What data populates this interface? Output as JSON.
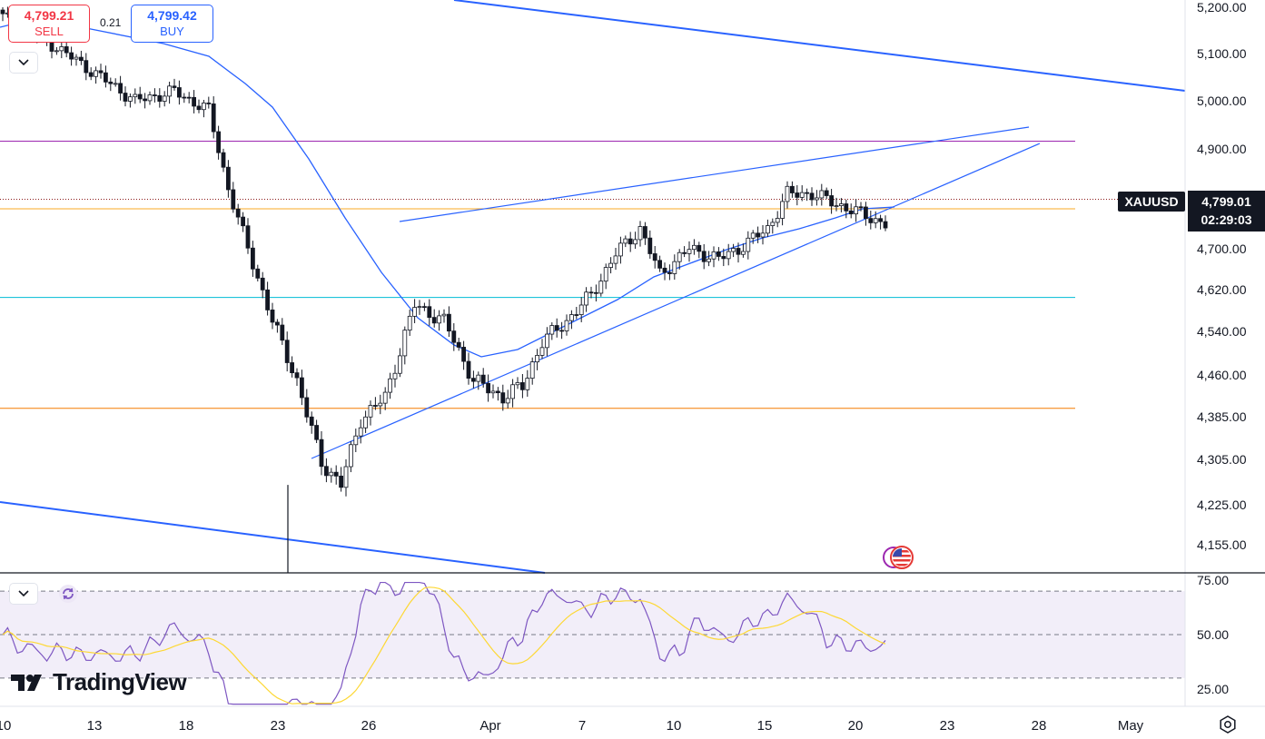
{
  "symbol": "XAUUSD",
  "trade": {
    "sell_price": "4,799.21",
    "sell_label": "SELL",
    "buy_price": "4,799.42",
    "buy_label": "BUY",
    "spread": "0.21"
  },
  "last_price": "4,799.01",
  "countdown": "02:29:03",
  "brand": "TradingView",
  "colors": {
    "up": "#ffffff",
    "down": "#131722",
    "ma": "#2962ff",
    "rsi": "#7e57c2",
    "rsi_ma": "#fdd835",
    "purple_level": "#9c27b0",
    "yellow_level": "#f9a825",
    "cyan_level": "#00bcd4",
    "orange_level": "#f57c00"
  },
  "chart_data": [
    {
      "type": "candlestick",
      "symbol": "XAUUSD",
      "price_ticks": [
        "5,200.00",
        "5,100.00",
        "5,000.00",
        "4,900.00",
        "4,700.00",
        "4,620.00",
        "4,540.00",
        "4,460.00",
        "4,385.00",
        "4,305.00",
        "4,225.00",
        "4,155.00"
      ],
      "time_ticks": [
        "10",
        "13",
        "18",
        "23",
        "26",
        "Apr",
        "7",
        "10",
        "15",
        "20",
        "23",
        "28",
        "May"
      ],
      "horizontal_levels": [
        4916,
        4780,
        4605,
        4400
      ],
      "last_price": 4799.01,
      "moving_average": "blue line",
      "grid": false
    },
    {
      "type": "line",
      "indicator": "RSI",
      "ticks": [
        "75.00",
        "50.00",
        "25.00"
      ],
      "band": [
        30,
        70
      ],
      "ylim": [
        17,
        78
      ]
    }
  ]
}
